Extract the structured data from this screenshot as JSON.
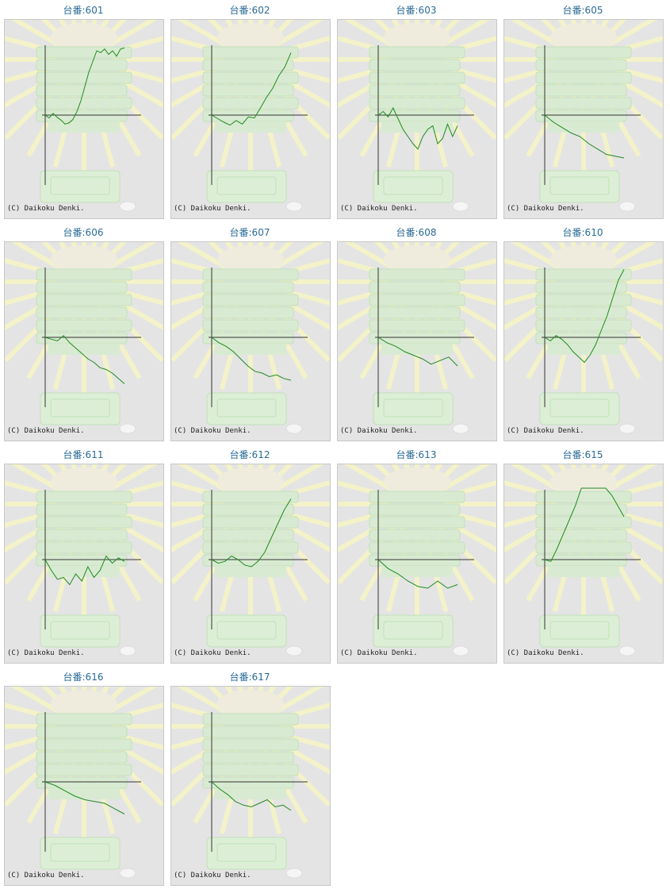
{
  "label_prefix": "台番:",
  "copyright": "(C) Daikoku Denki.",
  "line_color": "#1f8a1f",
  "machines": [
    {
      "number": "601",
      "slump": [
        0,
        -8,
        5,
        -6,
        -14,
        -25,
        -22,
        -12,
        10,
        40,
        80,
        120,
        150,
        180,
        175,
        185,
        170,
        180,
        165,
        185,
        188
      ]
    },
    {
      "number": "602",
      "slump": [
        0,
        -10,
        -20,
        -28,
        -15,
        -25,
        -5,
        -8,
        20,
        50,
        75,
        110,
        135,
        175
      ]
    },
    {
      "number": "603",
      "slump": [
        0,
        10,
        -5,
        20,
        -10,
        -40,
        -60,
        -80,
        -95,
        -60,
        -40,
        -30,
        -80,
        -65,
        -25,
        -60,
        -30
      ]
    },
    {
      "number": "605",
      "slump": [
        0,
        -20,
        -35,
        -50,
        -60,
        -80,
        -95,
        -110,
        -115,
        -120
      ]
    },
    {
      "number": "606",
      "slump": [
        0,
        -5,
        -10,
        5,
        -15,
        -30,
        -45,
        -60,
        -70,
        -85,
        -90,
        -100,
        -115,
        -130
      ]
    },
    {
      "number": "607",
      "slump": [
        0,
        -15,
        -25,
        -40,
        -60,
        -80,
        -95,
        -100,
        -110,
        -105,
        -115,
        -120
      ]
    },
    {
      "number": "608",
      "slump": [
        0,
        -15,
        -25,
        -40,
        -50,
        -60,
        -75,
        -65,
        -55,
        -80
      ]
    },
    {
      "number": "610",
      "slump": [
        0,
        -10,
        5,
        -5,
        -20,
        -40,
        -55,
        -70,
        -50,
        -20,
        20,
        60,
        110,
        160,
        190
      ]
    },
    {
      "number": "611",
      "slump": [
        0,
        -30,
        -55,
        -50,
        -70,
        -40,
        -60,
        -20,
        -50,
        -30,
        10,
        -10,
        5,
        -5
      ]
    },
    {
      "number": "612",
      "slump": [
        0,
        -10,
        -5,
        10,
        0,
        -15,
        -20,
        -5,
        20,
        60,
        100,
        140,
        170
      ]
    },
    {
      "number": "613",
      "slump": [
        0,
        -25,
        -40,
        -60,
        -75,
        -80,
        -60,
        -80,
        -70
      ]
    },
    {
      "number": "615",
      "slump": [
        0,
        -5,
        30,
        70,
        110,
        150,
        200,
        230,
        210,
        220,
        200,
        180,
        150,
        120
      ]
    },
    {
      "number": "616",
      "slump": [
        0,
        -10,
        -25,
        -40,
        -50,
        -55,
        -60,
        -75,
        -90
      ]
    },
    {
      "number": "617",
      "slump": [
        0,
        -20,
        -35,
        -55,
        -65,
        -70,
        -60,
        -50,
        -70,
        -65,
        -80
      ]
    }
  ]
}
